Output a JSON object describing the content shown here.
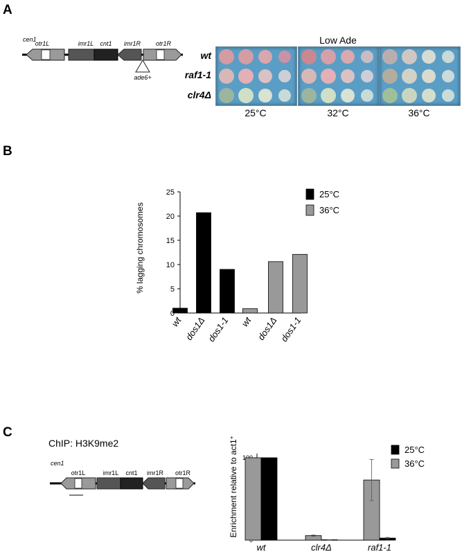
{
  "panel_a": {
    "letter": "A",
    "diagram": {
      "cen": "cen1",
      "regions": [
        "otr1L",
        "imr1L",
        "cnt1",
        "imr1R",
        "otr1R"
      ],
      "insert": "ade6+"
    },
    "plate_title": "Low Ade",
    "strains": [
      "wt",
      "raf1-1",
      "clr4Δ"
    ],
    "temperatures": [
      "25°C",
      "32°C",
      "36°C"
    ]
  },
  "panel_b": {
    "letter": "B"
  },
  "panel_c": {
    "letter": "C",
    "chip_title": "ChIP: H3K9me2",
    "diagram": {
      "cen": "cen1",
      "regions": [
        "otr1L",
        "imr1L",
        "cnt1",
        "imr1R",
        "otr1R"
      ]
    }
  },
  "colors": {
    "black_series": "#000000",
    "grey_series": "#999999",
    "plate_blue": "#5a9ec6"
  },
  "chart_data": [
    {
      "type": "bar",
      "title": "",
      "xlabel": "",
      "ylabel": "% lagging chromosomes",
      "ylim": [
        0,
        25
      ],
      "yticks": [
        0,
        5,
        10,
        15,
        20,
        25
      ],
      "grid": false,
      "legend_position": "top-right",
      "groups": [
        {
          "name": "25°C",
          "color": "#000000",
          "categories": [
            "wt",
            "dos1Δ",
            "dos1-1"
          ],
          "values": [
            1,
            20.7,
            9
          ]
        },
        {
          "name": "36°C",
          "color": "#999999",
          "categories": [
            "wt",
            "dos1Δ",
            "dos1-1"
          ],
          "values": [
            0.9,
            10.6,
            12.1
          ]
        }
      ]
    },
    {
      "type": "bar",
      "title": "",
      "xlabel": "",
      "ylabel": "Enrichment relative to act1+",
      "ylim": [
        0,
        100
      ],
      "yticks": [
        0,
        20,
        40,
        60,
        80,
        100
      ],
      "grid": false,
      "legend_position": "top-right",
      "categories": [
        "wt",
        "clr4Δ",
        "raf1-1"
      ],
      "series": [
        {
          "name": "36°C",
          "color": "#999999",
          "values": [
            100,
            5.5,
            73
          ],
          "error": [
            0,
            0.7,
            25
          ]
        },
        {
          "name": "25°C",
          "color": "#000000",
          "values": [
            100,
            0.5,
            2.5
          ],
          "error": [
            0,
            0.2,
            0.8
          ]
        }
      ],
      "legend_order": [
        "25°C",
        "36°C"
      ]
    }
  ]
}
